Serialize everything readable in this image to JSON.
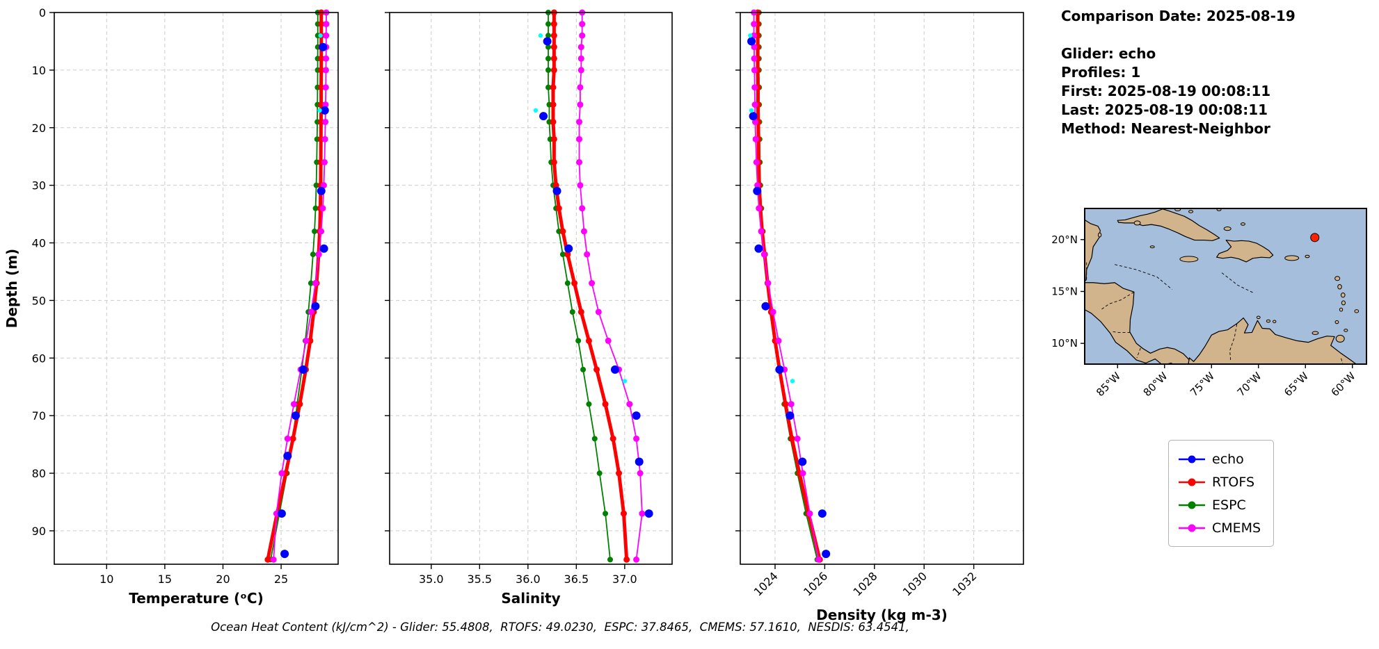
{
  "info": {
    "lines": [
      "Comparison Date: 2025-08-19",
      "",
      "Glider: echo",
      "Profiles: 1",
      "First: 2025-08-19 00:08:11",
      "Last: 2025-08-19 00:08:11",
      "Method: Nearest-Neighbor"
    ]
  },
  "legend": {
    "items": [
      {
        "label": "echo",
        "color": "#0000ff"
      },
      {
        "label": "RTOFS",
        "color": "#ff0000"
      },
      {
        "label": "ESPC",
        "color": "#008000"
      },
      {
        "label": "CMEMS",
        "color": "#ff00ff"
      }
    ]
  },
  "caption": "Ocean Heat Content (kJ/cm^2) - Glider: 55.4808,  RTOFS: 49.0230,  ESPC: 37.8465,  CMEMS: 57.1610,  NESDIS: 63.4541,",
  "map": {
    "lon_range": [
      -88.5,
      -58.5
    ],
    "lat_range": [
      8,
      23
    ],
    "lat_ticks": [
      {
        "value": 20,
        "label": "20°N"
      },
      {
        "value": 15,
        "label": "15°N"
      },
      {
        "value": 10,
        "label": "10°N"
      }
    ],
    "lon_ticks": [
      {
        "value": -85,
        "label": "85°W"
      },
      {
        "value": -80,
        "label": "80°W"
      },
      {
        "value": -75,
        "label": "75°W"
      },
      {
        "value": -70,
        "label": "70°W"
      },
      {
        "value": -65,
        "label": "65°W"
      },
      {
        "value": -60,
        "label": "60°W"
      }
    ],
    "marker": {
      "lon": -64.0,
      "lat": 20.2,
      "color": "#ff2200"
    },
    "ocean_color": "#a5bedb",
    "land_color": "#d2b48c"
  },
  "chart_data": [
    {
      "type": "line",
      "id": "temperature",
      "xlabel": "Temperature (ᵒC)",
      "ylabel": "Depth (m)",
      "xlim": [
        5.5,
        29.9
      ],
      "ylim": [
        0,
        95.8
      ],
      "xticks": [
        10,
        15,
        20,
        25
      ],
      "yticks": [
        0,
        10,
        20,
        30,
        40,
        50,
        60,
        70,
        80,
        90
      ],
      "grid": true,
      "series": [
        {
          "name": "ESPC",
          "color": "#008000",
          "line_width": 1.8,
          "marker_size": 4,
          "depths": [
            0,
            2,
            4,
            6,
            8,
            10,
            13,
            16,
            19,
            22,
            26,
            30,
            34,
            38,
            42,
            47,
            52,
            57,
            62,
            68,
            74,
            80,
            87,
            95
          ],
          "values": [
            28.15,
            28.15,
            28.15,
            28.15,
            28.14,
            28.14,
            28.13,
            28.12,
            28.11,
            28.09,
            28.06,
            28.02,
            27.96,
            27.87,
            27.74,
            27.56,
            27.34,
            27.08,
            26.78,
            26.38,
            26.0,
            25.5,
            24.85,
            24.1
          ]
        },
        {
          "name": "RTOFS",
          "color": "#ff0000",
          "line_width": 5,
          "marker_size": 4.5,
          "depths": [
            0,
            2,
            4,
            6,
            8,
            10,
            13,
            16,
            19,
            22,
            26,
            30,
            34,
            38,
            42,
            47,
            52,
            57,
            62,
            68,
            74,
            80,
            87,
            95
          ],
          "values": [
            28.45,
            28.45,
            28.45,
            28.45,
            28.45,
            28.45,
            28.44,
            28.44,
            28.43,
            28.42,
            28.41,
            28.4,
            28.37,
            28.32,
            28.22,
            28.05,
            27.8,
            27.5,
            27.12,
            26.6,
            26.02,
            25.4,
            24.65,
            23.85
          ]
        },
        {
          "name": "CMEMS",
          "color": "#ff00ff",
          "line_width": 1.8,
          "marker_size": 4.5,
          "depths": [
            0,
            2,
            4,
            6,
            8,
            10,
            13,
            16,
            19,
            22,
            26,
            30,
            34,
            38,
            42,
            47,
            52,
            57,
            62,
            68,
            74,
            80,
            87,
            95
          ],
          "values": [
            28.88,
            28.88,
            28.87,
            28.87,
            28.86,
            28.85,
            28.84,
            28.82,
            28.8,
            28.77,
            28.73,
            28.67,
            28.58,
            28.44,
            28.24,
            27.95,
            27.58,
            27.15,
            26.68,
            26.1,
            25.55,
            25.05,
            24.6,
            24.35
          ]
        },
        {
          "name": "echo",
          "color": "#0000ff",
          "line_width": 0,
          "marker_size": 6,
          "depths": [
            6,
            17,
            31,
            41,
            51,
            62,
            70,
            77,
            87,
            94
          ],
          "values": [
            28.6,
            28.75,
            28.45,
            28.68,
            27.95,
            26.9,
            26.25,
            25.55,
            25.05,
            25.3
          ]
        },
        {
          "name": "NESDIS",
          "color": "#00ffff",
          "line_width": 0,
          "marker_size": 3.2,
          "depths": [
            4,
            17
          ],
          "values": [
            28.38,
            28.32
          ]
        }
      ]
    },
    {
      "type": "line",
      "id": "salinity",
      "xlabel": "Salinity",
      "ylabel": "",
      "xlim": [
        34.57,
        37.49
      ],
      "ylim": [
        0,
        95.8
      ],
      "xticks": [
        35.0,
        35.5,
        36.0,
        36.5,
        37.0
      ],
      "xtick_labels": [
        "35.0",
        "35.5",
        "36.0",
        "36.5",
        "37.0"
      ],
      "yticks": [
        0,
        10,
        20,
        30,
        40,
        50,
        60,
        70,
        80,
        90
      ],
      "grid": true,
      "series": [
        {
          "name": "ESPC",
          "color": "#008000",
          "line_width": 1.8,
          "marker_size": 4,
          "depths": [
            0,
            2,
            4,
            6,
            8,
            10,
            13,
            16,
            19,
            22,
            26,
            30,
            34,
            38,
            42,
            47,
            52,
            57,
            62,
            68,
            74,
            80,
            87,
            95
          ],
          "values": [
            36.21,
            36.21,
            36.21,
            36.21,
            36.21,
            36.21,
            36.21,
            36.22,
            36.22,
            36.23,
            36.24,
            36.26,
            36.29,
            36.32,
            36.36,
            36.41,
            36.46,
            36.52,
            36.57,
            36.63,
            36.69,
            36.74,
            36.8,
            36.85
          ]
        },
        {
          "name": "RTOFS",
          "color": "#ff0000",
          "line_width": 5,
          "marker_size": 4.5,
          "depths": [
            0,
            2,
            4,
            6,
            8,
            10,
            13,
            16,
            19,
            22,
            26,
            30,
            34,
            38,
            42,
            47,
            52,
            57,
            62,
            68,
            74,
            80,
            87,
            95
          ],
          "values": [
            36.27,
            36.27,
            36.27,
            36.27,
            36.27,
            36.27,
            36.26,
            36.26,
            36.26,
            36.27,
            36.27,
            36.29,
            36.32,
            36.36,
            36.41,
            36.48,
            36.55,
            36.63,
            36.71,
            36.8,
            36.88,
            36.94,
            36.99,
            37.02
          ]
        },
        {
          "name": "CMEMS",
          "color": "#ff00ff",
          "line_width": 1.8,
          "marker_size": 4.5,
          "depths": [
            0,
            2,
            4,
            6,
            8,
            10,
            13,
            16,
            19,
            22,
            26,
            30,
            34,
            38,
            42,
            47,
            52,
            57,
            62,
            68,
            74,
            80,
            87,
            95
          ],
          "values": [
            36.56,
            36.56,
            36.56,
            36.55,
            36.55,
            36.55,
            36.54,
            36.54,
            36.53,
            36.53,
            36.53,
            36.54,
            36.56,
            36.58,
            36.61,
            36.66,
            36.73,
            36.83,
            36.94,
            37.05,
            37.12,
            37.16,
            37.18,
            37.12
          ]
        },
        {
          "name": "echo",
          "color": "#0000ff",
          "line_width": 0,
          "marker_size": 6,
          "depths": [
            5,
            18,
            31,
            41,
            62,
            70,
            78,
            87
          ],
          "values": [
            36.2,
            36.16,
            36.3,
            36.42,
            36.9,
            37.12,
            37.15,
            37.25
          ]
        },
        {
          "name": "NESDIS",
          "color": "#00ffff",
          "line_width": 0,
          "marker_size": 3.2,
          "depths": [
            4,
            17,
            64
          ],
          "values": [
            36.13,
            36.08,
            37.0
          ]
        }
      ]
    },
    {
      "type": "line",
      "id": "density",
      "xlabel": "Density (kg m-3)",
      "ylabel": "",
      "xlim": [
        1022.6,
        1034.0
      ],
      "ylim": [
        0,
        95.8
      ],
      "xticks": [
        1024,
        1026,
        1028,
        1030,
        1032
      ],
      "xtick_labels": [
        "1024",
        "1026",
        "1028",
        "1030",
        "1032"
      ],
      "yticks": [
        0,
        10,
        20,
        30,
        40,
        50,
        60,
        70,
        80,
        90
      ],
      "grid": true,
      "series": [
        {
          "name": "ESPC",
          "color": "#008000",
          "line_width": 1.8,
          "marker_size": 4,
          "depths": [
            0,
            2,
            4,
            6,
            8,
            10,
            13,
            16,
            19,
            22,
            26,
            30,
            34,
            38,
            42,
            47,
            52,
            57,
            62,
            68,
            74,
            80,
            87,
            95
          ],
          "values": [
            1023.35,
            1023.35,
            1023.35,
            1023.35,
            1023.35,
            1023.35,
            1023.36,
            1023.36,
            1023.37,
            1023.38,
            1023.39,
            1023.41,
            1023.45,
            1023.51,
            1023.6,
            1023.71,
            1023.84,
            1023.99,
            1024.15,
            1024.37,
            1024.62,
            1024.9,
            1025.25,
            1025.7
          ]
        },
        {
          "name": "RTOFS",
          "color": "#ff0000",
          "line_width": 5,
          "marker_size": 4.5,
          "depths": [
            0,
            2,
            4,
            6,
            8,
            10,
            13,
            16,
            19,
            22,
            26,
            30,
            34,
            38,
            42,
            47,
            52,
            57,
            62,
            68,
            74,
            80,
            87,
            95
          ],
          "values": [
            1023.3,
            1023.3,
            1023.3,
            1023.3,
            1023.3,
            1023.3,
            1023.31,
            1023.31,
            1023.32,
            1023.33,
            1023.34,
            1023.36,
            1023.41,
            1023.48,
            1023.58,
            1023.7,
            1023.84,
            1024.0,
            1024.18,
            1024.42,
            1024.68,
            1024.98,
            1025.35,
            1025.8
          ]
        },
        {
          "name": "CMEMS",
          "color": "#ff00ff",
          "line_width": 1.8,
          "marker_size": 4.5,
          "depths": [
            0,
            2,
            4,
            6,
            8,
            10,
            13,
            16,
            19,
            22,
            26,
            30,
            34,
            38,
            42,
            47,
            52,
            57,
            62,
            68,
            74,
            80,
            87,
            95
          ],
          "values": [
            1023.15,
            1023.15,
            1023.15,
            1023.16,
            1023.16,
            1023.17,
            1023.18,
            1023.19,
            1023.2,
            1023.22,
            1023.25,
            1023.29,
            1023.35,
            1023.44,
            1023.56,
            1023.72,
            1023.92,
            1024.14,
            1024.38,
            1024.65,
            1024.9,
            1025.12,
            1025.4,
            1025.75
          ]
        },
        {
          "name": "echo",
          "color": "#0000ff",
          "line_width": 0,
          "marker_size": 6,
          "depths": [
            5,
            18,
            31,
            41,
            51,
            62,
            70,
            78,
            87,
            94
          ],
          "values": [
            1023.05,
            1023.12,
            1023.28,
            1023.34,
            1023.62,
            1024.18,
            1024.6,
            1025.1,
            1025.9,
            1026.05
          ]
        },
        {
          "name": "NESDIS",
          "color": "#00ffff",
          "line_width": 0,
          "marker_size": 3.2,
          "depths": [
            4,
            17,
            64
          ],
          "values": [
            1023.0,
            1023.05,
            1024.7
          ]
        }
      ]
    }
  ]
}
